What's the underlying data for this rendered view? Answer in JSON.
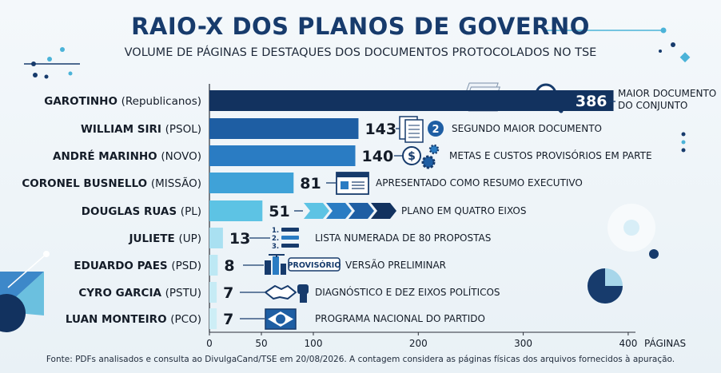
{
  "header": {
    "title": "RAIO-X DOS PLANOS DE GOVERNO",
    "subtitle": "VOLUME DE PÁGINAS E DESTAQUES DOS DOCUMENTOS PROTOCOLADOS NO TSE"
  },
  "footer": {
    "source": "Fonte: PDFs analisados e consulta ao DivulgaCand/TSE em 20/08/2026. A contagem considera as páginas físicas dos arquivos fornecidos à apuração."
  },
  "icons": {
    "row_0": "magnifier-documents-icon",
    "row_1": "documents-number-2-icon",
    "row_2": "dollar-gears-icon",
    "row_3": "window-document-icon",
    "row_4": "four-arrows-icon",
    "row_5": "numbered-list-icon",
    "row_6": "construction-city-icon",
    "row_7": "handshake-fist-icon",
    "row_8": "brazil-flag-icon"
  },
  "badges": {
    "provisorio": "PROVISÓRIO",
    "second": "2"
  },
  "colors": {
    "title": "#173b6c",
    "bar_scale": [
      "#12325f",
      "#1e5ea3",
      "#2a7cc3",
      "#3fa2d8",
      "#5dc3e4",
      "#a9e0f1",
      "#bde8f4",
      "#c6ebf5",
      "#cdeef6"
    ]
  },
  "chart_data": {
    "type": "bar",
    "orientation": "horizontal",
    "title": "RAIO-X DOS PLANOS DE GOVERNO",
    "subtitle": "VOLUME DE PÁGINAS E DESTAQUES DOS DOCUMENTOS PROTOCOLADOS NO TSE",
    "xlabel": "PÁGINAS",
    "ylabel": "",
    "xlim": [
      0,
      400
    ],
    "xticks": [
      0,
      50,
      100,
      200,
      300,
      400
    ],
    "grid": false,
    "categories": [
      {
        "name": "GAROTINHO",
        "party": "(Republicanos)"
      },
      {
        "name": "WILLIAM SIRI",
        "party": "(PSOL)"
      },
      {
        "name": "ANDRÉ MARINHO",
        "party": "(NOVO)"
      },
      {
        "name": "CORONEL BUSNELLO",
        "party": "(MISSÃO)"
      },
      {
        "name": "DOUGLAS RUAS",
        "party": "(PL)"
      },
      {
        "name": "JULIETE",
        "party": "(UP)"
      },
      {
        "name": "EDUARDO PAES",
        "party": "(PSD)"
      },
      {
        "name": "CYRO GARCIA",
        "party": "(PSTU)"
      },
      {
        "name": "LUAN MONTEIRO",
        "party": "(PCO)"
      }
    ],
    "values": [
      386,
      143,
      140,
      81,
      51,
      13,
      8,
      7,
      7
    ],
    "annotations": [
      [
        "MAIOR DOCUMENTO",
        "DO CONJUNTO"
      ],
      [
        "SEGUNDO MAIOR DOCUMENTO"
      ],
      [
        "METAS E CUSTOS PROVISÓRIOS EM PARTE"
      ],
      [
        "APRESENTADO COMO RESUMO EXECUTIVO"
      ],
      [
        "PLANO EM QUATRO EIXOS"
      ],
      [
        "LISTA NUMERADA DE 80 PROPOSTAS"
      ],
      [
        "VERSÃO PRELIMINAR"
      ],
      [
        "DIAGNÓSTICO E DEZ EIXOS POLÍTICOS"
      ],
      [
        "PROGRAMA NACIONAL DO PARTIDO"
      ]
    ],
    "list_numbers": [
      "1.",
      "2.",
      "3."
    ]
  }
}
